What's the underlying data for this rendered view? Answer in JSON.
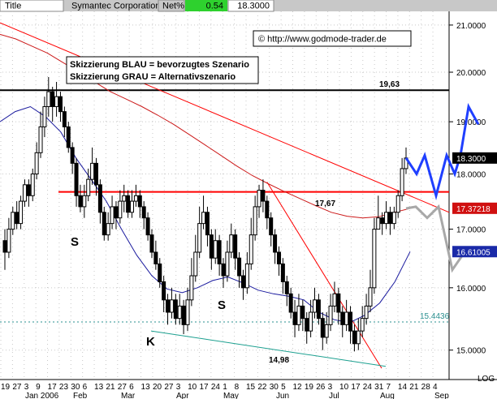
{
  "header": {
    "title_cell": "Title",
    "name": "Symantec Corporation",
    "change_label": "Net%",
    "change_value": "0.54",
    "last_value": "18.3000"
  },
  "copyright": "© http://www.godmode-trader.de",
  "notes": {
    "blue": "Skizzierung BLAU = bevorzugtes Szenario",
    "gray": "Skizzierung GRAU = Alternativszenario"
  },
  "colors": {
    "header_bg": "#c8c8c8",
    "change_bg": "#2ed12e",
    "grid": "#c8c8c8",
    "candle": "#000000",
    "ma_fast": "#1a1a9e",
    "ma_slow": "#cc1a1a",
    "resistance": "#000000",
    "support_red": "#ff0000",
    "channel_teal": "#1b9f8f",
    "scenario_blue": "#1f3fff",
    "scenario_gray": "#a8a8a8",
    "dotted_level": "#2a8f8f"
  },
  "chart_data": {
    "type": "candlestick",
    "symbol": "Symantec Corporation",
    "yaxis": {
      "range": [
        14.55,
        21.3
      ],
      "ticks": [
        "21.0000",
        "20.0000",
        "19.0000",
        "18.0000",
        "17.0000",
        "16.0000",
        "15.0000"
      ],
      "scale": "LOG",
      "side": "right",
      "grid": true
    },
    "xaxis": {
      "day_labels": [
        "19",
        "27",
        "3",
        "9",
        "17",
        "23",
        "30",
        "6",
        "13",
        "21",
        "27",
        "6",
        "13",
        "20",
        "27",
        "3",
        "10",
        "17",
        "24",
        "1",
        "8",
        "15",
        "22",
        "30",
        "5",
        "12",
        "19",
        "26",
        "3",
        "10",
        "17",
        "24",
        "31",
        "7",
        "14",
        "21",
        "28",
        "4"
      ],
      "month_labels": [
        "Jan 2006",
        "Feb",
        "Mar",
        "Apr",
        "May",
        "Jun",
        "Jul",
        "Aug",
        "Sep"
      ]
    },
    "levels": [
      {
        "name": "resistance",
        "value": 19.63,
        "label": "19,63"
      },
      {
        "name": "support",
        "value": 17.67,
        "label": "17,67"
      },
      {
        "name": "dotted",
        "value": 15.4436,
        "label": "15.4436"
      },
      {
        "name": "low",
        "value": 14.98,
        "label": "14,98"
      }
    ],
    "price_tags": [
      {
        "value": 18.3,
        "label": "18.3000"
      },
      {
        "value": 17.37218,
        "label": "17.37218"
      },
      {
        "value": 16.61005,
        "label": "16.61005"
      }
    ],
    "pattern_labels": [
      "S",
      "K",
      "S"
    ],
    "candles": [
      [
        16.8,
        16.6,
        17.0,
        16.3
      ],
      [
        16.6,
        17.0,
        17.2,
        16.5
      ],
      [
        17.0,
        17.3,
        17.4,
        16.9
      ],
      [
        17.3,
        17.1,
        17.5,
        17.0
      ],
      [
        17.1,
        17.5,
        17.6,
        17.0
      ],
      [
        17.5,
        17.8,
        17.9,
        17.4
      ],
      [
        17.8,
        17.6,
        17.9,
        17.4
      ],
      [
        17.6,
        18.0,
        18.1,
        17.5
      ],
      [
        18.0,
        18.4,
        18.6,
        17.9
      ],
      [
        18.4,
        18.9,
        19.2,
        18.3
      ],
      [
        18.9,
        19.3,
        19.5,
        18.7
      ],
      [
        19.3,
        19.6,
        19.9,
        19.1
      ],
      [
        19.6,
        19.3,
        19.7,
        19.0
      ],
      [
        19.3,
        19.5,
        19.8,
        19.1
      ],
      [
        19.5,
        19.2,
        19.6,
        19.0
      ],
      [
        19.2,
        18.9,
        19.3,
        18.7
      ],
      [
        18.9,
        18.5,
        19.0,
        18.4
      ],
      [
        18.5,
        18.2,
        18.6,
        18.0
      ],
      [
        18.2,
        17.6,
        18.3,
        17.4
      ],
      [
        17.6,
        17.4,
        17.8,
        17.3
      ],
      [
        17.4,
        17.6,
        17.8,
        17.2
      ],
      [
        17.6,
        17.9,
        18.1,
        17.5
      ],
      [
        17.9,
        18.2,
        18.5,
        17.8
      ],
      [
        18.2,
        17.8,
        18.3,
        17.6
      ],
      [
        17.8,
        17.3,
        17.9,
        17.1
      ],
      [
        17.3,
        16.9,
        17.4,
        16.8
      ],
      [
        16.9,
        17.1,
        17.3,
        16.8
      ],
      [
        17.1,
        17.4,
        17.6,
        17.0
      ],
      [
        17.4,
        17.2,
        17.5,
        17.0
      ],
      [
        17.2,
        17.5,
        17.7,
        17.1
      ],
      [
        17.5,
        17.6,
        17.8,
        17.3
      ],
      [
        17.6,
        17.3,
        17.7,
        17.2
      ],
      [
        17.3,
        17.5,
        17.7,
        17.2
      ],
      [
        17.5,
        17.6,
        17.8,
        17.4
      ],
      [
        17.6,
        17.4,
        17.7,
        17.2
      ],
      [
        17.4,
        17.2,
        17.5,
        17.0
      ],
      [
        17.2,
        16.9,
        17.3,
        16.8
      ],
      [
        16.9,
        16.6,
        17.0,
        16.5
      ],
      [
        16.6,
        16.4,
        16.8,
        16.3
      ],
      [
        16.4,
        16.1,
        16.5,
        16.0
      ],
      [
        16.1,
        15.8,
        16.2,
        15.6
      ],
      [
        15.8,
        15.6,
        15.9,
        15.4
      ],
      [
        15.6,
        15.8,
        16.0,
        15.5
      ],
      [
        15.8,
        15.5,
        15.9,
        15.4
      ],
      [
        15.5,
        15.7,
        15.9,
        15.4
      ],
      [
        15.7,
        15.4,
        15.8,
        15.25
      ],
      [
        15.4,
        15.8,
        16.0,
        15.3
      ],
      [
        15.8,
        16.2,
        16.5,
        15.7
      ],
      [
        16.2,
        16.6,
        16.9,
        16.1
      ],
      [
        16.6,
        17.1,
        17.4,
        16.5
      ],
      [
        17.1,
        17.3,
        17.6,
        17.0
      ],
      [
        17.3,
        16.9,
        17.4,
        16.7
      ],
      [
        16.9,
        16.5,
        17.0,
        16.3
      ],
      [
        16.5,
        16.8,
        17.0,
        16.4
      ],
      [
        16.8,
        16.4,
        16.9,
        16.2
      ],
      [
        16.4,
        16.2,
        16.5,
        16.0
      ],
      [
        16.2,
        16.6,
        16.8,
        16.1
      ],
      [
        16.6,
        16.9,
        17.1,
        16.5
      ],
      [
        16.9,
        16.5,
        17.0,
        16.3
      ],
      [
        16.5,
        16.2,
        16.6,
        16.0
      ],
      [
        16.2,
        16.0,
        16.3,
        15.8
      ],
      [
        16.0,
        16.4,
        16.6,
        15.9
      ],
      [
        16.4,
        16.9,
        17.2,
        16.3
      ],
      [
        16.9,
        17.4,
        17.6,
        16.8
      ],
      [
        17.4,
        17.7,
        17.8,
        17.2
      ],
      [
        17.7,
        17.5,
        17.9,
        17.3
      ],
      [
        17.5,
        17.2,
        17.6,
        17.0
      ],
      [
        17.2,
        16.9,
        17.3,
        16.7
      ],
      [
        16.9,
        16.6,
        17.0,
        16.4
      ],
      [
        16.6,
        16.4,
        16.7,
        16.2
      ],
      [
        16.4,
        16.1,
        16.5,
        15.9
      ],
      [
        16.1,
        15.9,
        16.2,
        15.7
      ],
      [
        15.9,
        15.6,
        16.0,
        15.5
      ],
      [
        15.6,
        15.4,
        15.8,
        15.2
      ],
      [
        15.4,
        15.7,
        15.9,
        15.3
      ],
      [
        15.7,
        15.5,
        15.8,
        15.3
      ],
      [
        15.5,
        15.3,
        15.6,
        15.1
      ],
      [
        15.3,
        15.6,
        15.8,
        15.2
      ],
      [
        15.6,
        15.8,
        16.0,
        15.5
      ],
      [
        15.8,
        15.5,
        15.9,
        15.4
      ],
      [
        15.5,
        15.2,
        15.6,
        15.0
      ],
      [
        15.2,
        15.4,
        15.6,
        15.1
      ],
      [
        15.4,
        15.7,
        15.9,
        15.3
      ],
      [
        15.7,
        15.9,
        16.1,
        15.6
      ],
      [
        15.9,
        15.6,
        16.0,
        15.4
      ],
      [
        15.6,
        15.4,
        15.7,
        15.2
      ],
      [
        15.4,
        15.6,
        15.8,
        15.3
      ],
      [
        15.6,
        15.3,
        15.7,
        15.1
      ],
      [
        15.3,
        15.1,
        15.4,
        14.98
      ],
      [
        15.1,
        15.3,
        15.5,
        15.0
      ],
      [
        15.3,
        15.5,
        15.7,
        15.2
      ],
      [
        15.5,
        15.7,
        15.9,
        15.4
      ],
      [
        15.7,
        16.0,
        16.3,
        15.6
      ],
      [
        16.0,
        17.0,
        17.2,
        15.9
      ],
      [
        17.0,
        17.2,
        17.6,
        17.0
      ],
      [
        17.2,
        17.1,
        17.3,
        16.9
      ],
      [
        17.1,
        17.3,
        17.5,
        17.0
      ],
      [
        17.3,
        17.1,
        17.4,
        16.9
      ],
      [
        17.1,
        17.3,
        17.4,
        17.0
      ],
      [
        17.3,
        17.6,
        17.7,
        17.2
      ],
      [
        17.6,
        18.1,
        18.3,
        17.5
      ],
      [
        18.1,
        18.3,
        18.5,
        18.0
      ]
    ],
    "moving_averages": [
      {
        "name": "fast",
        "values": [
          19.0,
          19.2,
          19.3,
          19.1,
          18.8,
          18.3,
          17.9,
          17.5,
          17.0,
          16.55,
          16.2,
          15.98,
          15.92,
          16.0,
          16.12,
          16.18,
          16.08,
          15.96,
          15.9,
          15.86,
          15.8,
          15.6,
          15.48,
          15.43,
          15.55,
          15.75,
          16.1,
          16.61
        ]
      },
      {
        "name": "slow",
        "values": [
          20.8,
          20.7,
          20.55,
          20.4,
          20.2,
          20.0,
          19.8,
          19.6,
          19.45,
          19.3,
          19.13,
          18.95,
          18.75,
          18.55,
          18.35,
          18.15,
          17.97,
          17.82,
          17.68,
          17.55,
          17.42,
          17.3,
          17.23,
          17.2,
          17.22,
          17.3,
          17.37
        ]
      }
    ],
    "scenarios": [
      {
        "name": "blue",
        "values": [
          18.3,
          18.0,
          18.35,
          17.6,
          18.35,
          18.0,
          18.35,
          19.3,
          18.95
        ]
      },
      {
        "name": "gray",
        "values": [
          17.37,
          17.4,
          17.2,
          17.4,
          16.3,
          16.6
        ]
      }
    ]
  }
}
